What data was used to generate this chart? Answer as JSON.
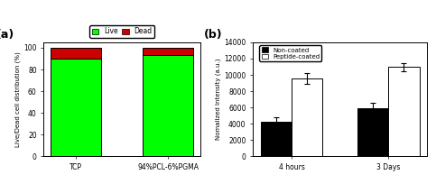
{
  "panel_a": {
    "categories": [
      "TCP",
      "94%PCL-6%PGMA"
    ],
    "live_values": [
      90,
      93
    ],
    "dead_values": [
      10,
      7
    ],
    "live_color": "#00FF00",
    "dead_color": "#CC0000",
    "ylabel": "Live/Dead cell distribution (%)",
    "ylim": [
      0,
      105
    ],
    "yticks": [
      0,
      20,
      40,
      60,
      80,
      100
    ],
    "bar_width": 0.55,
    "label": "(a)"
  },
  "panel_b": {
    "categories": [
      "4 hours",
      "3 Days"
    ],
    "non_coated_values": [
      4200,
      5900
    ],
    "non_coated_errors": [
      550,
      650
    ],
    "peptide_coated_values": [
      9600,
      11000
    ],
    "peptide_coated_errors": [
      650,
      500
    ],
    "non_coated_color": "#000000",
    "peptide_coated_color": "#FFFFFF",
    "ylabel": "Nomalized Intensity (a.u.)",
    "ylim": [
      0,
      14000
    ],
    "yticks": [
      0,
      2000,
      4000,
      6000,
      8000,
      10000,
      12000,
      14000
    ],
    "bar_width": 0.32,
    "label": "(b)"
  }
}
